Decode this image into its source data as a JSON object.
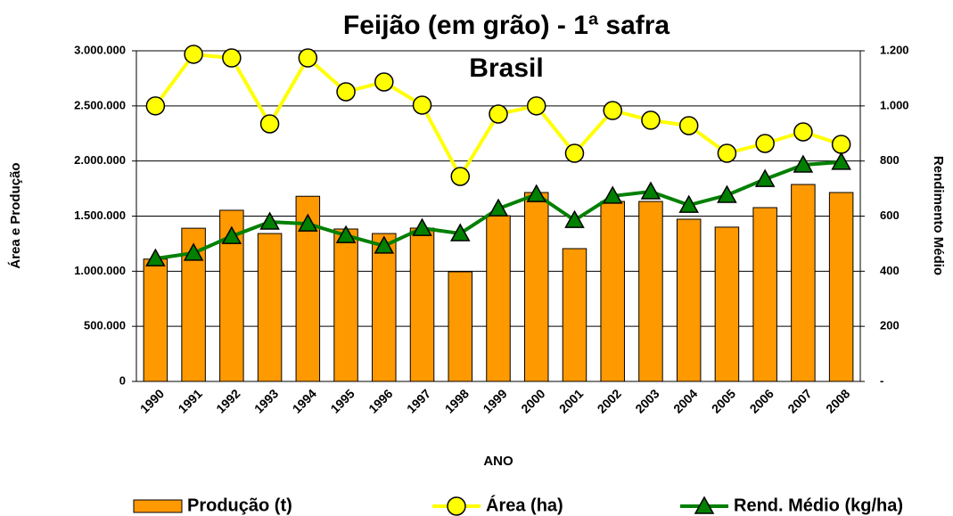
{
  "chart_data": {
    "type": "bar",
    "title": "Feijão (em grão) - 1ª safra",
    "subtitle": "Brasil",
    "x_label": "ANO",
    "y_label": "Área e Produção",
    "y2_label": "Rendimento Médio",
    "categories": [
      "1990",
      "1991",
      "1992",
      "1993",
      "1994",
      "1995",
      "1996",
      "1997",
      "1998",
      "1999",
      "2000",
      "2001",
      "2002",
      "2003",
      "2004",
      "2005",
      "2006",
      "2007",
      "2008"
    ],
    "series": [
      {
        "name": "Produção (t)",
        "type": "bar",
        "color": "#ff9900",
        "values": [
          1110000,
          1390000,
          1553000,
          1342000,
          1680000,
          1383000,
          1342000,
          1391000,
          995000,
          1504000,
          1714000,
          1205000,
          1633000,
          1633000,
          1472000,
          1400000,
          1577000,
          1787000,
          1714000
        ]
      },
      {
        "name": "Área (ha)",
        "type": "line",
        "marker": "circle",
        "color": "#ffff00",
        "values": [
          2500000,
          2968000,
          2935000,
          2337000,
          2935000,
          2628000,
          2717000,
          2507000,
          1860000,
          2426000,
          2500000,
          2070000,
          2458000,
          2370000,
          2321000,
          2070000,
          2159000,
          2264000,
          2151000
        ]
      },
      {
        "name": "Rend. Médio (kg/ha)",
        "type": "line",
        "marker": "triangle",
        "color": "#008000",
        "axis": "y2",
        "values": [
          446,
          466,
          527,
          579,
          572,
          530,
          492,
          556,
          537,
          627,
          679,
          585,
          673,
          689,
          640,
          676,
          734,
          786,
          796
        ]
      }
    ],
    "ylim": [
      0,
      3000000
    ],
    "yticks": [
      0,
      {
        "value": 500000,
        "label": "500.000"
      },
      {
        "value": 1000000,
        "label": "1.000.000"
      },
      {
        "value": 1500000,
        "label": "1.500.000"
      },
      {
        "value": 2000000,
        "label": "2.000.000"
      },
      {
        "value": 2500000,
        "label": "2.500.000"
      },
      {
        "value": 3000000,
        "label": "3.000.000"
      }
    ],
    "y2lim": [
      0,
      1200
    ],
    "y2ticks": [
      {
        "value": 0,
        "label": "-"
      },
      200,
      400,
      600,
      800,
      {
        "value": 1000,
        "label": "1.000"
      },
      {
        "value": 1200,
        "label": "1.200"
      }
    ],
    "grid": true,
    "legend": "bottom"
  }
}
